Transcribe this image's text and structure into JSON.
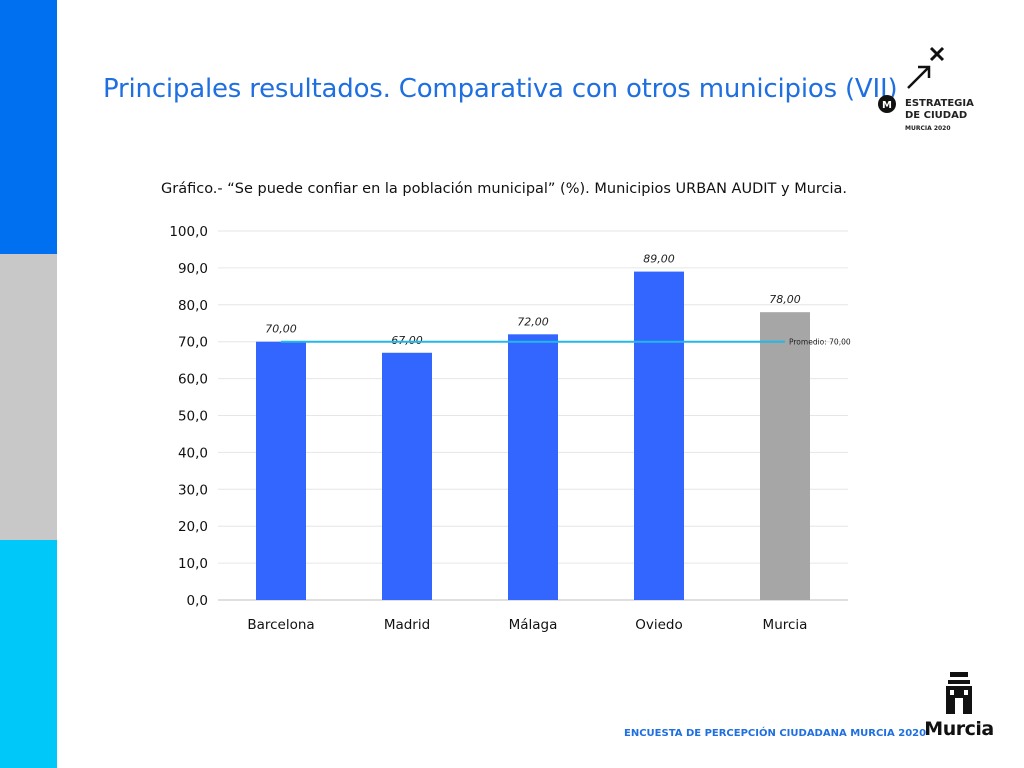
{
  "slide": {
    "title": "Principales resultados. Comparativa con otros municipios (VII)",
    "caption": "Gráfico.-  “Se puede confiar en la población municipal” (%). Municipios URBAN AUDIT y Murcia.",
    "footer": "ENCUESTA DE PERCEPCIÓN CIUDADANA MURCIA 2020"
  },
  "logo": {
    "line1": "ESTRATEGIA",
    "line2": "DE CIUDAD",
    "line3": "MURCIA 2020",
    "badge": "M"
  },
  "crest": {
    "label": "Murcia"
  },
  "chart_data": {
    "type": "bar",
    "categories": [
      "Barcelona",
      "Madrid",
      "Málaga",
      "Oviedo",
      "Murcia"
    ],
    "values": [
      70,
      67,
      72,
      89,
      78
    ],
    "value_labels": [
      "70,00",
      "67,00",
      "72,00",
      "89,00",
      "78,00"
    ],
    "bar_colors": [
      "#3366ff",
      "#3366ff",
      "#3366ff",
      "#3366ff",
      "#a6a6a6"
    ],
    "ylim": [
      0,
      100
    ],
    "yticks": [
      0,
      10,
      20,
      30,
      40,
      50,
      60,
      70,
      80,
      90,
      100
    ],
    "ytick_labels": [
      "0,0",
      "10,0",
      "20,0",
      "30,0",
      "40,0",
      "50,0",
      "60,0",
      "70,0",
      "80,0",
      "90,0",
      "100,0"
    ],
    "reference_line": {
      "value": 70,
      "label": "Promedio: 70,00",
      "color": "#22b8e8"
    },
    "grid": true,
    "xlabel": "",
    "ylabel": ""
  }
}
